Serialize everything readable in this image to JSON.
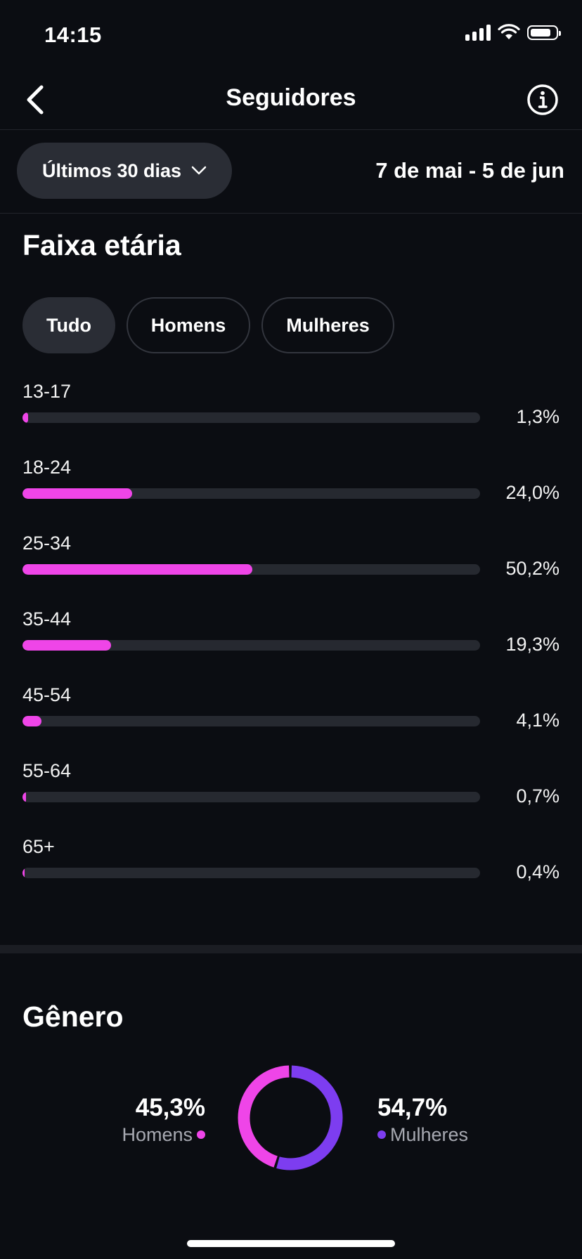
{
  "status_bar": {
    "time": "14:15"
  },
  "nav": {
    "title": "Seguidores"
  },
  "filters": {
    "period_label": "Últimos 30 dias",
    "date_range": "7 de mai - 5 de jun"
  },
  "age_section": {
    "title": "Faixa etária",
    "tabs": [
      {
        "label": "Tudo",
        "active": true
      },
      {
        "label": "Homens",
        "active": false
      },
      {
        "label": "Mulheres",
        "active": false
      }
    ],
    "rows": [
      {
        "label": "13-17",
        "value_text": "1,3%",
        "percent": 1.3
      },
      {
        "label": "18-24",
        "value_text": "24,0%",
        "percent": 24.0
      },
      {
        "label": "25-34",
        "value_text": "50,2%",
        "percent": 50.2
      },
      {
        "label": "35-44",
        "value_text": "19,3%",
        "percent": 19.3
      },
      {
        "label": "45-54",
        "value_text": "4,1%",
        "percent": 4.1
      },
      {
        "label": "55-64",
        "value_text": "0,7%",
        "percent": 0.7
      },
      {
        "label": "65+",
        "value_text": "0,4%",
        "percent": 0.4
      }
    ]
  },
  "gender_section": {
    "title": "Gênero",
    "men": {
      "value_text": "45,3%",
      "label": "Homens",
      "percent": 45.3
    },
    "women": {
      "value_text": "54,7%",
      "label": "Mulheres",
      "percent": 54.7
    }
  },
  "colors": {
    "background": "#0b0d12",
    "men": "#ef45e8",
    "women": "#7d3df0",
    "track": "#262930"
  },
  "icons": {
    "back": "chevron-left-icon",
    "info": "info-circle-icon",
    "dropdown": "chevron-down-icon"
  }
}
